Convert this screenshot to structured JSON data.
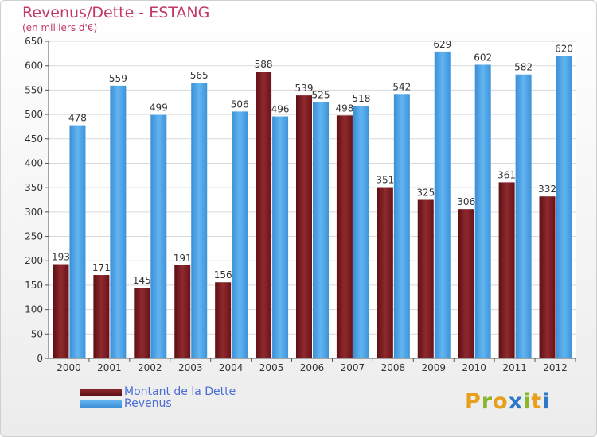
{
  "header": {
    "title": "Revenus/Dette - ESTANG",
    "subtitle": "(en milliers d'€)"
  },
  "legend": {
    "items": [
      {
        "label": "Montant de la Dette",
        "color": "#7a1518"
      },
      {
        "label": "Revenus",
        "color": "#4aa3e6"
      }
    ]
  },
  "logo": {
    "letters": [
      {
        "ch": "P",
        "color": "#e8a01c"
      },
      {
        "ch": "r",
        "color": "#8ab62e"
      },
      {
        "ch": "o",
        "color": "#e8a01c"
      },
      {
        "ch": "x",
        "color": "#2d78c8"
      },
      {
        "ch": "i",
        "color": "#8ab62e"
      },
      {
        "ch": "t",
        "color": "#e8a01c"
      },
      {
        "ch": "i",
        "color": "#2d78c8"
      }
    ]
  },
  "chart_data": {
    "type": "bar",
    "title": "Revenus/Dette - ESTANG",
    "subtitle": "(en milliers d'€)",
    "categories": [
      "2000",
      "2001",
      "2002",
      "2003",
      "2004",
      "2005",
      "2006",
      "2007",
      "2008",
      "2009",
      "2010",
      "2011",
      "2012"
    ],
    "series": [
      {
        "name": "Montant de la Dette",
        "color": "#7a1518",
        "values": [
          193,
          171,
          145,
          191,
          156,
          588,
          539,
          498,
          351,
          325,
          306,
          361,
          332
        ]
      },
      {
        "name": "Revenus",
        "color": "#4aa3e6",
        "values": [
          478,
          559,
          499,
          565,
          506,
          496,
          525,
          518,
          542,
          629,
          602,
          582,
          620
        ]
      }
    ],
    "ylim": [
      0,
      650
    ],
    "yticks": [
      0,
      50,
      100,
      150,
      200,
      250,
      300,
      350,
      400,
      450,
      500,
      550,
      600,
      650
    ],
    "grid": true,
    "legend_position": "bottom-left"
  }
}
